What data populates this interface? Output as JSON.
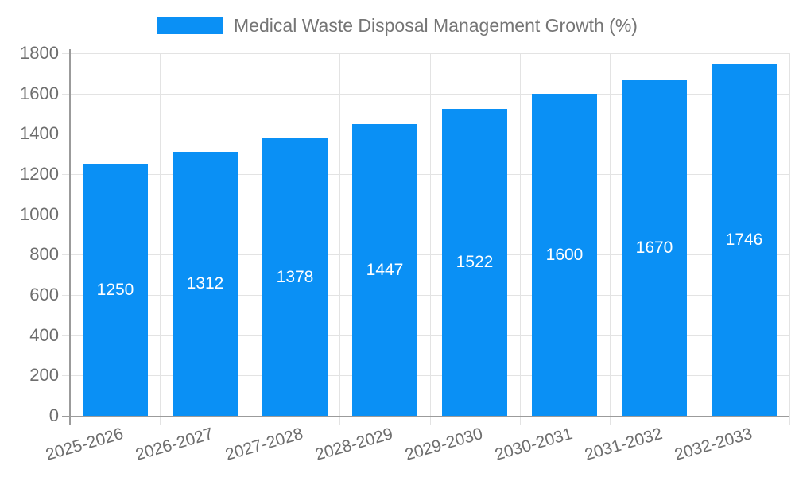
{
  "legend": {
    "label": "Medical Waste Disposal Management Growth (%)"
  },
  "colors": {
    "bar": "#0a90f5",
    "axis": "#9b9b9b",
    "grid": "#e3e3e3",
    "tick_text": "#6e6e6e",
    "legend_text": "#757575",
    "bar_label_text": "#ffffff"
  },
  "chart_data": {
    "type": "bar",
    "title": "Medical Waste Disposal Management Growth (%)",
    "categories": [
      "2025-2026",
      "2026-2027",
      "2027-2028",
      "2028-2029",
      "2029-2030",
      "2030-2031",
      "2031-2032",
      "2032-2033"
    ],
    "values": [
      1250,
      1312,
      1378,
      1447,
      1522,
      1600,
      1670,
      1746
    ],
    "bar_value_labels": [
      "1250",
      "1312",
      "1378",
      "1447",
      "1522",
      "1600",
      "1670",
      "1746"
    ],
    "ytick_labels": [
      "0",
      "200",
      "400",
      "600",
      "800",
      "1000",
      "1200",
      "1400",
      "1600",
      "1800"
    ],
    "xlabel": "",
    "ylabel": "",
    "ylim": [
      0,
      1800
    ],
    "ytick_step": 200,
    "grid": true,
    "legend_position": "top",
    "x_label_rotation_deg": -16,
    "bar_label_position": "center-inside"
  }
}
